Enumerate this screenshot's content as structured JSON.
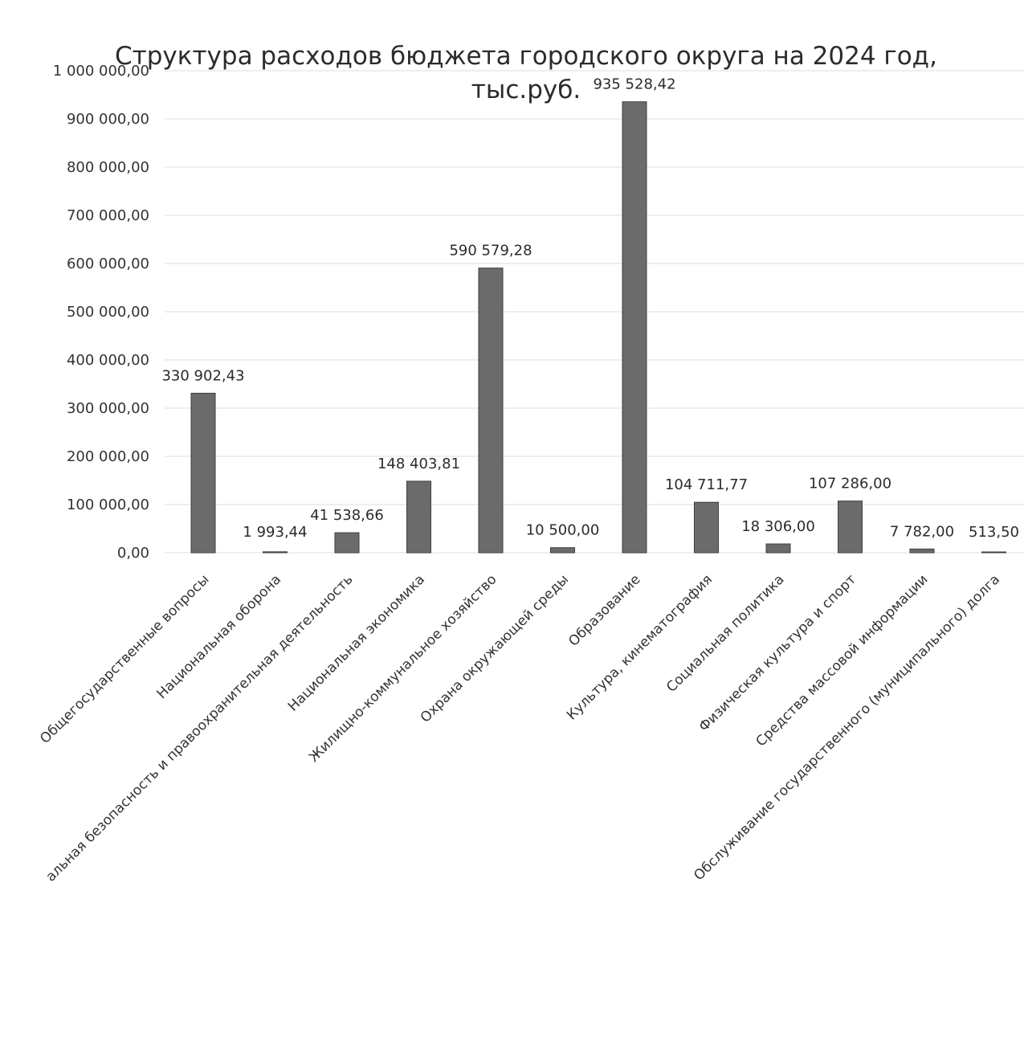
{
  "chart_data": {
    "type": "bar",
    "title": "Структура расходов бюджета городского округа на 2024 год,",
    "subtitle": "тыс.руб.",
    "xlabel": "",
    "ylabel": "",
    "ylim": [
      0,
      1000000
    ],
    "yticks": [
      0,
      100000,
      200000,
      300000,
      400000,
      500000,
      600000,
      700000,
      800000,
      900000,
      1000000
    ],
    "ytick_labels": [
      "0,00",
      "100 000,00",
      "200 000,00",
      "300 000,00",
      "400 000,00",
      "500 000,00",
      "600 000,00",
      "700 000,00",
      "800 000,00",
      "900 000,00",
      "1 000 000,00"
    ],
    "grid": true,
    "legend": "none",
    "bar_color": "#6b6b6b",
    "categories": [
      "Общегосударственные вопросы",
      "Национальная оборона",
      "альная безопасность и правоохранительная деятельность",
      "Национальная экономика",
      "Жилищно-коммунальное хозяйство",
      "Охрана окружающей среды",
      "Образование",
      "Культура, кинематография",
      "Социальная политика",
      "Физическая культура и спорт",
      "Средства массовой информации",
      "Обслуживание государственного (муниципального) долга"
    ],
    "values": [
      330902.43,
      1993.44,
      41538.66,
      148403.81,
      590579.28,
      10500.0,
      935528.42,
      104711.77,
      18306.0,
      107286.0,
      7782.0,
      513.5
    ],
    "value_labels": [
      "330 902,43",
      "1 993,44",
      "41 538,66",
      "148 403,81",
      "590 579,28",
      "10 500,00",
      "935 528,42",
      "104 711,77",
      "18 306,00",
      "107 286,00",
      "7 782,00",
      "513,50"
    ]
  }
}
